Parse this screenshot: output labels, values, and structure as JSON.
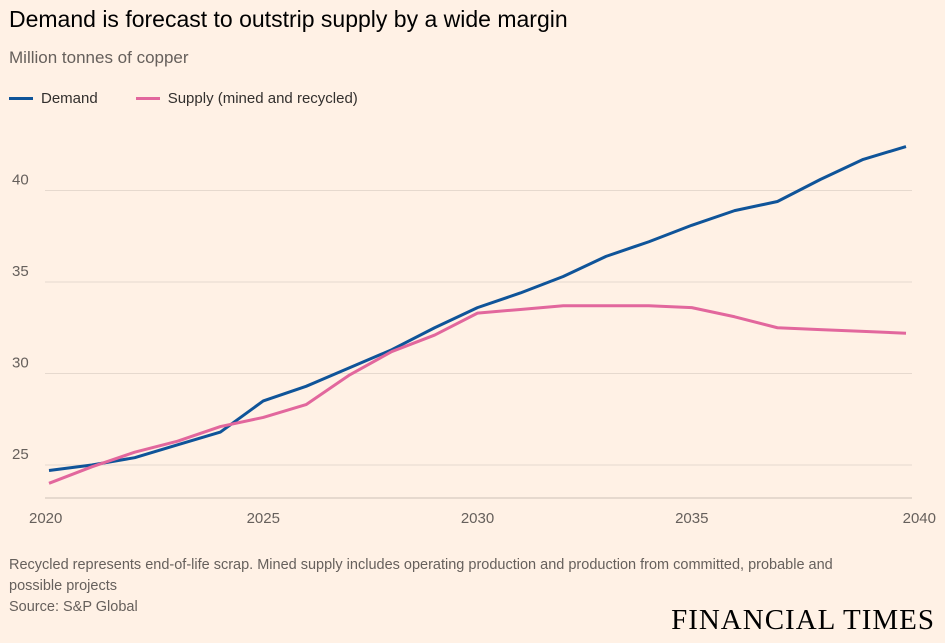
{
  "chart_data": {
    "type": "line",
    "title": "Demand is forecast to outstrip supply by a wide margin",
    "subtitle": "Million tonnes of copper",
    "xlabel": "",
    "ylabel": "Million tonnes of copper",
    "x": [
      2020,
      2021,
      2022,
      2023,
      2024,
      2025,
      2026,
      2027,
      2028,
      2029,
      2030,
      2031,
      2032,
      2033,
      2034,
      2035,
      2036,
      2037,
      2038,
      2039,
      2040
    ],
    "x_ticks": [
      "2020",
      "2025",
      "2030",
      "2035",
      "2040"
    ],
    "y_ticks": [
      "25",
      "30",
      "35",
      "40"
    ],
    "xlim": [
      2020,
      2040
    ],
    "ylim": [
      23.3,
      43
    ],
    "grid": true,
    "legend_placement": "top-left",
    "series": [
      {
        "name": "Demand",
        "color": "#0f5499",
        "values": [
          24.7,
          25.0,
          25.4,
          26.1,
          26.8,
          28.5,
          29.3,
          30.3,
          31.3,
          32.5,
          33.6,
          34.4,
          35.3,
          36.4,
          37.2,
          38.1,
          38.9,
          39.4,
          40.6,
          41.7,
          42.4
        ]
      },
      {
        "name": "Supply (mined and recycled)",
        "color": "#e2679d",
        "values": [
          24.0,
          24.9,
          25.7,
          26.3,
          27.1,
          27.6,
          28.3,
          29.9,
          31.2,
          32.1,
          33.3,
          33.5,
          33.7,
          33.7,
          33.7,
          33.6,
          33.1,
          32.5,
          32.4,
          32.3,
          32.2
        ]
      }
    ]
  },
  "footnote": "Recycled represents end-of-life scrap. Mined supply includes operating production and production from committed, probable and possible projects",
  "source": "Source: S&P Global",
  "logo": "FINANCIAL TIMES"
}
